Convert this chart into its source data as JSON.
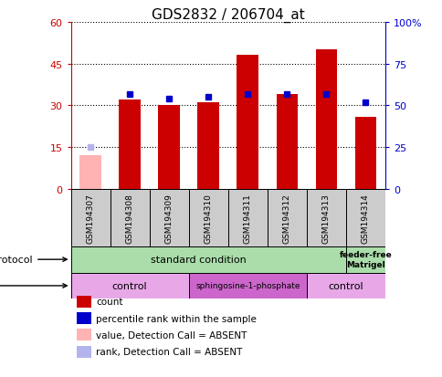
{
  "title": "GDS2832 / 206704_at",
  "samples": [
    "GSM194307",
    "GSM194308",
    "GSM194309",
    "GSM194310",
    "GSM194311",
    "GSM194312",
    "GSM194313",
    "GSM194314"
  ],
  "count_values": [
    null,
    32,
    30,
    31,
    48,
    34,
    50,
    26
  ],
  "count_absent": [
    12,
    null,
    null,
    null,
    null,
    null,
    null,
    null
  ],
  "rank_values": [
    null,
    57,
    54,
    55,
    57,
    57,
    57,
    52
  ],
  "rank_absent": [
    25,
    null,
    null,
    null,
    null,
    null,
    null,
    null
  ],
  "ylim_left": [
    0,
    60
  ],
  "ylim_right": [
    0,
    100
  ],
  "yticks_left": [
    0,
    15,
    30,
    45,
    60
  ],
  "ytick_labels_left": [
    "0",
    "15",
    "30",
    "45",
    "60"
  ],
  "ytick_labels_right": [
    "0",
    "25",
    "50",
    "75",
    "100%"
  ],
  "count_color": "#cc0000",
  "count_absent_color": "#ffb3b3",
  "rank_color": "#0000cc",
  "rank_absent_color": "#b3b3ee",
  "gsm_bg_color": "#cccccc",
  "growth_standard_color": "#aaddaa",
  "growth_feeder_color": "#aaddaa",
  "agent_control_color": "#e8a8e8",
  "agent_sphingo_color": "#cc66cc",
  "legend_items": [
    {
      "label": "count",
      "color": "#cc0000"
    },
    {
      "label": "percentile rank within the sample",
      "color": "#0000cc"
    },
    {
      "label": "value, Detection Call = ABSENT",
      "color": "#ffb3b3"
    },
    {
      "label": "rank, Detection Call = ABSENT",
      "color": "#b3b3ee"
    }
  ]
}
